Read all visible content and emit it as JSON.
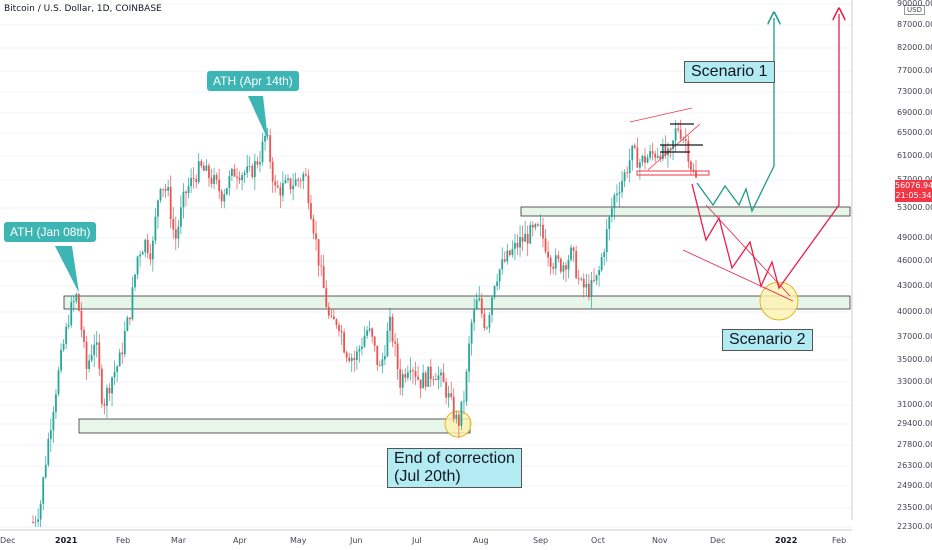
{
  "header": {
    "title": "Bitcoin / U.S. Dollar, 1D, COINBASE"
  },
  "price_tag": {
    "price": "56076.94",
    "countdown": "21:05:34"
  },
  "currency": "USD",
  "callouts": {
    "ath_jan": "ATH (Jan 08th)",
    "ath_apr": "ATH (Apr 14th)",
    "scenario1": "Scenario 1",
    "scenario2": "Scenario 2",
    "end_correction_line1": "End of correction",
    "end_correction_line2": "(Jul 20th)"
  },
  "colors": {
    "bull": "#26a69a",
    "bear": "#ef5350",
    "support_fill": "#e8f5e9",
    "scenario1": "#1e9a8a",
    "scenario2": "#e91e4a",
    "price_tag": "#f23645"
  },
  "chart_data": {
    "type": "candlestick",
    "title": "Bitcoin / U.S. Dollar, 1D, COINBASE",
    "y_axis": {
      "scale": "log",
      "ticks": [
        "90000.00",
        "87000.00",
        "82000.00",
        "77000.00",
        "73000.00",
        "69000.00",
        "65000.00",
        "61000.00",
        "57000.00",
        "53000.00",
        "49000.00",
        "46000.00",
        "43000.00",
        "40000.00",
        "37000.00",
        "35000.00",
        "33000.00",
        "31000.00",
        "29400.00",
        "27800.00",
        "26300.00",
        "24900.00",
        "23500.00",
        "22300.00"
      ]
    },
    "x_axis": {
      "ticks": [
        "Dec",
        "2021",
        "Feb",
        "Mar",
        "Apr",
        "May",
        "Jun",
        "Jul",
        "Aug",
        "Sep",
        "Oct",
        "Nov",
        "Dec",
        "2022",
        "Feb"
      ]
    },
    "key_prices": {
      "ath_jan_08": 41900,
      "ath_apr_14": 64800,
      "low_jul_20": 29300,
      "last": 56076.94
    },
    "zones": [
      {
        "name": "support-41k",
        "low": 40600,
        "high": 42000
      },
      {
        "name": "support-30k",
        "low": 29000,
        "high": 29800
      },
      {
        "name": "support-52k",
        "low": 52000,
        "high": 53200
      }
    ],
    "scenario_1": {
      "path": [
        57000,
        53500,
        55500,
        53000,
        54800,
        53000,
        57500,
        87000
      ]
    },
    "scenario_2": {
      "path": [
        57000,
        48500,
        51000,
        45000,
        47500,
        43000,
        45000,
        42500,
        90000
      ]
    }
  }
}
